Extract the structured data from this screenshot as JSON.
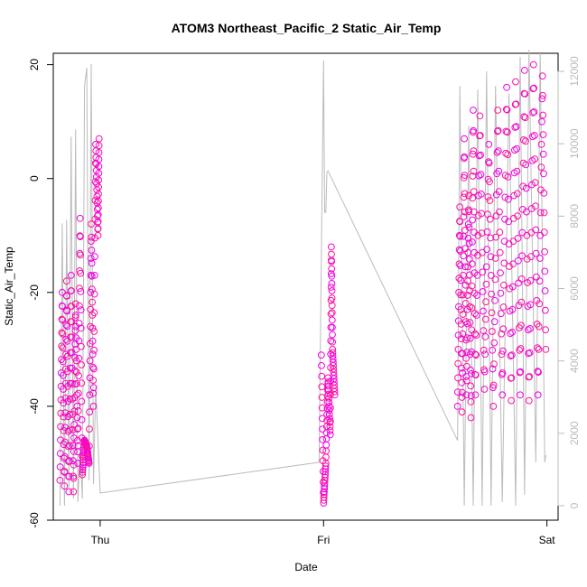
{
  "chart_data": {
    "type": "scatter",
    "title": "ATOM3 Northeast_Pacific_2 Static_Air_Temp",
    "xlabel": "Date",
    "ylabel": "Static_Air_Temp",
    "x_tick_labels": [
      "Thu",
      "Fri",
      "Sat"
    ],
    "x_ticks_day": [
      0,
      1,
      2
    ],
    "xlim_day": [
      -0.21,
      2.05
    ],
    "ylim": [
      -60,
      22
    ],
    "y_ticks": [
      -60,
      -40,
      -20,
      0,
      20
    ],
    "y2_ticks": [
      0,
      2000,
      4000,
      6000,
      8000,
      10000,
      12000
    ],
    "y2lim": [
      -400,
      12500
    ],
    "grid": false,
    "colors": {
      "temp_start": "#ff1493",
      "temp_end": "#ee00ee",
      "altitude": "#bbbbbb",
      "axis": "#000000",
      "axis2": "#bbbbbb"
    },
    "series": [
      {
        "role": "temperature",
        "marker": "open-circle",
        "x_day": [
          -0.18,
          -0.17,
          -0.16,
          -0.15,
          -0.14,
          -0.13,
          -0.12,
          -0.11,
          -0.1,
          -0.09,
          -0.08,
          -0.07,
          -0.06,
          -0.05,
          -0.04,
          -0.03,
          -0.02,
          -0.01,
          -0.005,
          0.99,
          1.0,
          1.01,
          1.02,
          1.03,
          1.035,
          1.04,
          1.05,
          1.6,
          1.61,
          1.62,
          1.63,
          1.64,
          1.65,
          1.66,
          1.67,
          1.68,
          1.7,
          1.72,
          1.74,
          1.76,
          1.78,
          1.8,
          1.82,
          1.84,
          1.86,
          1.88,
          1.9,
          1.92,
          1.94,
          1.96,
          1.98,
          1.995
        ],
        "y": [
          -53,
          -20,
          -54,
          -18,
          -55,
          -17,
          -55,
          -22,
          -50,
          -7,
          -52,
          -46,
          -47,
          -50,
          -8,
          -40,
          6,
          -10,
          7,
          -31,
          -57,
          -50,
          -35,
          -45,
          -12,
          -30,
          -38,
          -40,
          -5,
          -41,
          7,
          -38,
          -3,
          -42,
          12,
          -38,
          11,
          -37,
          6,
          -40,
          12,
          -38,
          16,
          -39,
          17,
          -38,
          19,
          -39,
          20,
          -38,
          18,
          -30
        ]
      },
      {
        "role": "altitude",
        "axis": "right",
        "line": true,
        "x_day": [
          -0.18,
          -0.17,
          -0.16,
          -0.15,
          -0.14,
          -0.13,
          -0.12,
          -0.11,
          -0.1,
          -0.09,
          -0.08,
          -0.07,
          -0.06,
          -0.05,
          -0.04,
          -0.03,
          -0.02,
          0.0,
          0.98,
          1.0,
          1.005,
          1.01,
          1.015,
          1.02,
          1.6,
          1.61,
          1.63,
          1.65,
          1.67,
          1.69,
          1.71,
          1.73,
          1.75,
          1.77,
          1.8,
          1.83,
          1.86,
          1.88,
          1.9,
          1.92,
          1.95,
          1.97,
          1.99,
          1.995
        ],
        "y": [
          0,
          7800,
          0,
          7900,
          500,
          10200,
          200,
          10400,
          100,
          1500,
          200,
          11600,
          12100,
          700,
          12200,
          600,
          3300,
          350,
          1200,
          12300,
          8100,
          8100,
          9200,
          9250,
          1800,
          11600,
          0,
          10500,
          0,
          11500,
          0,
          12000,
          0,
          11600,
          100,
          11400,
          0,
          12400,
          300,
          12600,
          1200,
          12500,
          1200,
          1400
        ]
      }
    ]
  }
}
